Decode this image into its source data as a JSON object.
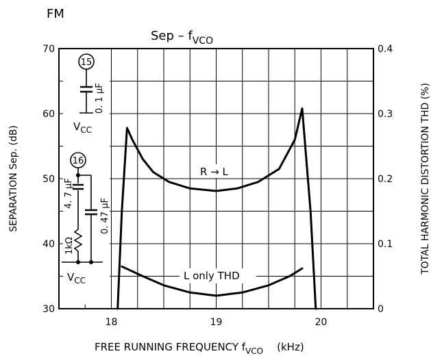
{
  "corner_label": "FM",
  "chart_data": {
    "type": "line",
    "title": "Sep  –  fVCO",
    "title_main": "Sep  –  f",
    "title_sub": "VCO",
    "xlabel_main": "FREE RUNNING FREQUENCY   f",
    "xlabel_sub": "VCO",
    "xlabel_unit": "(kHz)",
    "ylabel_left": "SEPARATION   Sep.   (dB)",
    "ylabel_right": "TOTAL HARMONIC DISTORTION   THD   (%)",
    "xlim": [
      17.5,
      20.5
    ],
    "ylim_left": [
      30,
      70
    ],
    "ylim_right": [
      0,
      0.4
    ],
    "x_ticks": [
      "18",
      "19",
      "20"
    ],
    "y_left_ticks": [
      "30",
      "40",
      "50",
      "60",
      "70"
    ],
    "y_right_ticks": [
      "0",
      "0.1",
      "0.2",
      "0.3",
      "0.4"
    ],
    "grid": true,
    "series": [
      {
        "name": "R → L",
        "axis": "left",
        "points": [
          [
            18.06,
            30
          ],
          [
            18.1,
            45
          ],
          [
            18.15,
            57.8
          ],
          [
            18.2,
            56
          ],
          [
            18.3,
            53
          ],
          [
            18.4,
            51
          ],
          [
            18.55,
            49.5
          ],
          [
            18.75,
            48.5
          ],
          [
            19.0,
            48.1
          ],
          [
            19.2,
            48.5
          ],
          [
            19.4,
            49.5
          ],
          [
            19.6,
            51.5
          ],
          [
            19.75,
            56
          ],
          [
            19.82,
            60.8
          ],
          [
            19.9,
            45
          ],
          [
            19.95,
            30
          ]
        ]
      },
      {
        "name": "L only THD",
        "axis": "right",
        "points": [
          [
            18.1,
            0.065
          ],
          [
            18.3,
            0.05
          ],
          [
            18.5,
            0.036
          ],
          [
            18.75,
            0.025
          ],
          [
            19.0,
            0.02
          ],
          [
            19.25,
            0.025
          ],
          [
            19.5,
            0.036
          ],
          [
            19.7,
            0.05
          ],
          [
            19.82,
            0.062
          ]
        ]
      }
    ]
  },
  "circuit": {
    "pin15_label": "15",
    "pin15_cap": "0. 1 μF",
    "vcc_top_main": "V",
    "vcc_top_sub": "CC",
    "pin16_label": "16",
    "pin16_cap1": "4. 7 μF",
    "pin16_cap2": "0. 47 μF",
    "pin16_res": "1kΩ",
    "vcc_bottom_main": "V",
    "vcc_bottom_sub": "CC"
  }
}
